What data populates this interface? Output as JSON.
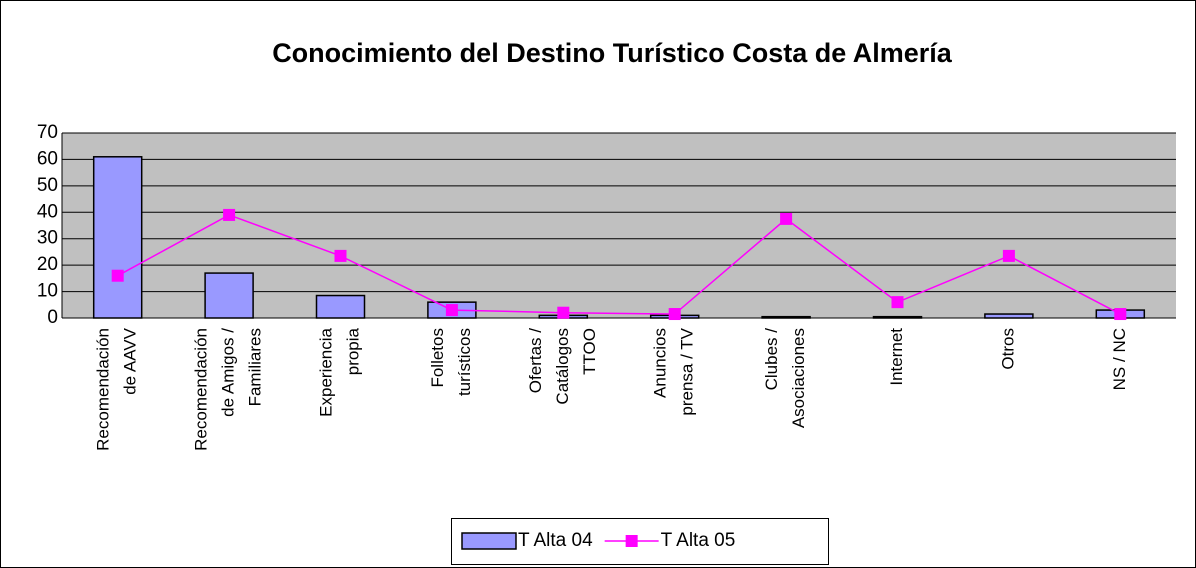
{
  "chart_data": {
    "type": "bar_line",
    "title": "Conocimiento del Destino Turístico Costa de Almería",
    "categories": [
      [
        "Recomendación",
        "de AAVV"
      ],
      [
        "Recomendación",
        "de Amigos /",
        "Familiares"
      ],
      [
        "Experiencia",
        "propia"
      ],
      [
        "Folletos",
        "turísticos"
      ],
      [
        "Ofertas /",
        "Catálogos",
        "TTOO"
      ],
      [
        "Anuncios",
        "prensa / TV"
      ],
      [
        "Clubes /",
        "Asociaciones"
      ],
      [
        "Internet"
      ],
      [
        "Otros"
      ],
      [
        "NS / NC"
      ]
    ],
    "series": [
      {
        "name": "T Alta 04",
        "type": "bar",
        "color": "#9999ff",
        "values": [
          61,
          17,
          8.5,
          6,
          1,
          1,
          0.5,
          0.5,
          1.5,
          3
        ]
      },
      {
        "name": "T Alta 05",
        "type": "line",
        "color": "#ff00ff",
        "values": [
          16,
          39,
          23.5,
          3,
          2,
          1.5,
          37.5,
          6,
          23.5,
          1.5
        ]
      }
    ],
    "ylim": [
      0,
      70
    ],
    "yticks": [
      0,
      10,
      20,
      30,
      40,
      50,
      60,
      70
    ],
    "grid": true,
    "legend": "bottom"
  }
}
